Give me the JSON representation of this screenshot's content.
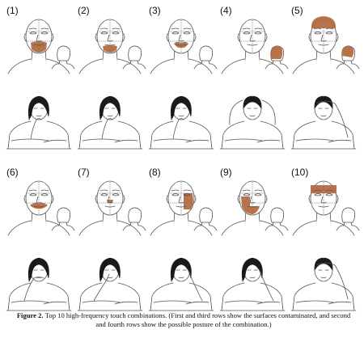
{
  "panels": [
    {
      "label": "(1)",
      "region": "mouth-chin"
    },
    {
      "label": "(2)",
      "region": "chin"
    },
    {
      "label": "(3)",
      "region": "mouth"
    },
    {
      "label": "(4)",
      "region": "back-of-head"
    },
    {
      "label": "(5)",
      "region": "forehead-top"
    },
    {
      "label": "(6)",
      "region": "lips"
    },
    {
      "label": "(7)",
      "region": "nose"
    },
    {
      "label": "(8)",
      "region": "right-cheek"
    },
    {
      "label": "(9)",
      "region": "left-cheek-chin"
    },
    {
      "label": "(10)",
      "region": "forehead"
    }
  ],
  "postures": [
    {
      "pose": "hand-to-mouth",
      "hair": "long"
    },
    {
      "pose": "hand-on-chin",
      "hair": "long"
    },
    {
      "pose": "hand-to-mouth-side",
      "hair": "long"
    },
    {
      "pose": "hands-behind-head",
      "hair": "short"
    },
    {
      "pose": "hand-on-forehead",
      "hair": "short"
    },
    {
      "pose": "hand-over-mouth",
      "hair": "long"
    },
    {
      "pose": "finger-to-nose",
      "hair": "long"
    },
    {
      "pose": "hand-on-cheek",
      "hair": "long"
    },
    {
      "pose": "hand-on-cheek",
      "hair": "long"
    },
    {
      "pose": "hand-on-forehead-lean",
      "hair": "short"
    }
  ],
  "colors": {
    "contamination": "#b0673d",
    "line": "#555555"
  },
  "caption": {
    "title": "Figure 2.",
    "text": "Top 10 high-frequency touch combinations. (First and third rows show the surfaces contaminated, and second and fourth rows show the possible posture of the combination.)"
  }
}
